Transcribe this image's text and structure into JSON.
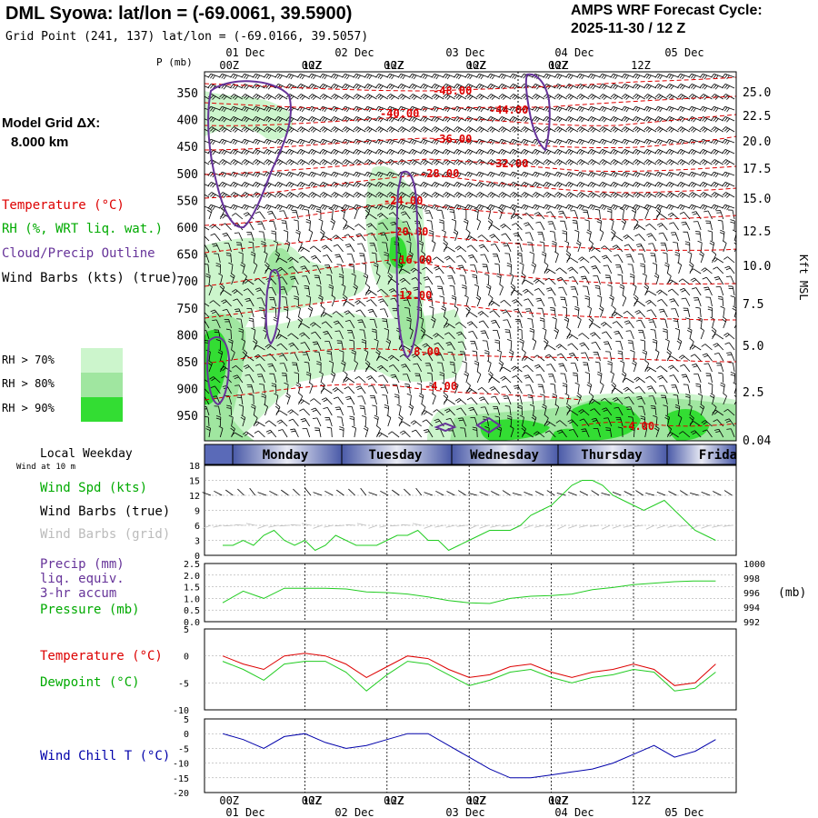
{
  "header": {
    "title": "DML Syowa:  lat/lon = (-69.0061, 39.5900)",
    "grid_point": "Grid Point (241, 137) lat/lon = (-69.0166, 39.5057)",
    "forecast_line1": "AMPS WRF Forecast Cycle:",
    "forecast_line2": "2025-11-30 / 12  Z"
  },
  "left_labels": {
    "model_grid": "Model Grid ΔX:",
    "model_grid_value": "8.000 km",
    "temperature": "Temperature (°C)",
    "rh": "RH (%, WRT liq. wat.)",
    "cloud": "Cloud/Precip Outline",
    "wind_barbs": "Wind Barbs (kts) (true)",
    "rh70": "RH > 70%",
    "rh80": "RH > 80%",
    "rh90": "RH > 90%",
    "local_weekday": "Local Weekday",
    "wind_at": "Wind at 10 m",
    "wind_spd": "Wind Spd (kts)",
    "wind_barbs_true": "Wind Barbs (true)",
    "wind_barbs_grid": "Wind Barbs (grid)",
    "precip": "Precip (mm)",
    "liq": "liq. equiv.",
    "accum": "3-hr accum",
    "pressure": "Pressure (mb)",
    "temp2": "Temperature (°C)",
    "dewpoint": "Dewpoint (°C)",
    "windchill": "Wind Chill T (°C)",
    "p_unit": "P (mb)",
    "kft": "Kft MSL",
    "mb": "(mb)"
  },
  "colors": {
    "temperature": "#dd0000",
    "rh_label": "#00aa00",
    "cloud": "#663399",
    "rh70": "#ccf5cc",
    "rh80": "#a0e6a0",
    "rh90": "#33dd33",
    "line_green": "#22cc22",
    "line_red": "#dd0000",
    "line_blue": "#0000aa"
  },
  "time_axis": {
    "top_dates": [
      "01 Dec",
      "02 Dec",
      "03 Dec",
      "04 Dec",
      "05 Dec"
    ],
    "top_hours": [
      "00Z",
      "12Z",
      "00Z",
      "12Z",
      "00Z",
      "12Z",
      "00Z",
      "12Z",
      "00Z",
      "12Z"
    ],
    "bottom_hours": [
      "00Z",
      "12Z",
      "00Z",
      "12Z",
      "00Z",
      "12Z",
      "00Z",
      "12Z",
      "00Z",
      "12Z"
    ],
    "bottom_dates": [
      "01 Dec",
      "02 Dec",
      "03 Dec",
      "04 Dec",
      "05 Dec"
    ],
    "weekdays": [
      "Monday",
      "Tuesday",
      "Wednesday",
      "Thursday",
      "Frida"
    ]
  },
  "chart_data": [
    {
      "type": "heatmap",
      "name": "cross-section",
      "y_left_ticks": [
        "350",
        "400",
        "450",
        "500",
        "550",
        "600",
        "650",
        "700",
        "750",
        "800",
        "850",
        "900",
        "950"
      ],
      "y_right_ticks": [
        "25.0",
        "22.5",
        "20.0",
        "17.5",
        "15.0",
        "12.5",
        "10.0",
        "7.5",
        "5.0",
        "2.5",
        "0.04"
      ],
      "temperature_labels": [
        "-48.00",
        "-44.00",
        "-40.00",
        "-36.00",
        "-32.00",
        "-28.00",
        "-24.00",
        "-20.00",
        "-16.00",
        "-12.00",
        "-8.00",
        "-4.00",
        "-4.00"
      ]
    },
    {
      "type": "line",
      "name": "wind-speed",
      "y_ticks": [
        "18",
        "15",
        "12",
        "9",
        "6",
        "3",
        "0"
      ],
      "ylim": [
        0,
        18
      ],
      "series": [
        {
          "name": "Wind Spd (kts)",
          "color": "#22cc22",
          "x": [
            0,
            3,
            6,
            9,
            12,
            15,
            18,
            21,
            24,
            27,
            30,
            33,
            36,
            39,
            42,
            45,
            48,
            51,
            54,
            57,
            60,
            63,
            66,
            69,
            72,
            75,
            78,
            81,
            84,
            87,
            90,
            93,
            96,
            99,
            102,
            105,
            108,
            111,
            114,
            117,
            120,
            123,
            126,
            129,
            132,
            135,
            138,
            141,
            144
          ],
          "values": [
            2,
            2,
            3,
            2,
            4,
            5,
            3,
            2,
            3,
            1,
            2,
            4,
            3,
            2,
            2,
            2,
            3,
            4,
            4,
            5,
            3,
            3,
            1,
            2,
            3,
            4,
            5,
            5,
            5,
            6,
            8,
            9,
            10,
            12,
            14,
            15,
            15,
            14,
            12,
            11,
            10,
            9,
            10,
            11,
            9,
            7,
            5,
            4,
            3
          ]
        }
      ]
    },
    {
      "type": "line",
      "name": "precip-pressure",
      "y_left_ticks": [
        "2.5",
        "2.0",
        "1.5",
        "1.0",
        "0.5",
        "0.0"
      ],
      "y_right_ticks": [
        "1000",
        "998",
        "996",
        "994",
        "992"
      ],
      "ylim_pressure": [
        992,
        1000
      ],
      "series": [
        {
          "name": "Pressure (mb)",
          "color": "#22cc22",
          "x": [
            0,
            6,
            12,
            18,
            24,
            30,
            36,
            42,
            48,
            54,
            60,
            66,
            72,
            78,
            84,
            90,
            96,
            102,
            108,
            114,
            120,
            126,
            132,
            138,
            144
          ],
          "values": [
            994.6,
            996.2,
            995.2,
            996.6,
            996.6,
            996.6,
            996.5,
            996.1,
            996.0,
            995.8,
            995.4,
            994.9,
            994.6,
            994.5,
            995.2,
            995.5,
            995.6,
            995.8,
            996.4,
            996.7,
            997.1,
            997.3,
            997.5,
            997.6,
            997.6
          ]
        }
      ]
    },
    {
      "type": "line",
      "name": "temperature-dewpoint",
      "y_ticks": [
        "5",
        "0",
        "-5",
        "-10"
      ],
      "ylim": [
        -10,
        5
      ],
      "series": [
        {
          "name": "Temperature (°C)",
          "color": "#dd0000",
          "x": [
            0,
            6,
            12,
            18,
            24,
            30,
            36,
            42,
            48,
            54,
            60,
            66,
            72,
            78,
            84,
            90,
            96,
            102,
            108,
            114,
            120,
            126,
            132,
            138,
            144
          ],
          "values": [
            0.0,
            -1.5,
            -2.5,
            0.0,
            0.5,
            0.0,
            -1.5,
            -4.0,
            -2.0,
            0.0,
            -0.5,
            -2.5,
            -4.0,
            -3.5,
            -2.0,
            -1.5,
            -3.0,
            -4.0,
            -3.0,
            -2.5,
            -1.5,
            -2.5,
            -5.5,
            -5.0,
            -1.5
          ]
        },
        {
          "name": "Dewpoint (°C)",
          "color": "#22cc22",
          "x": [
            0,
            6,
            12,
            18,
            24,
            30,
            36,
            42,
            48,
            54,
            60,
            66,
            72,
            78,
            84,
            90,
            96,
            102,
            108,
            114,
            120,
            126,
            132,
            138,
            144
          ],
          "values": [
            -1.0,
            -2.5,
            -4.5,
            -1.5,
            -1.0,
            -1.0,
            -3.0,
            -6.5,
            -3.5,
            -1.0,
            -1.5,
            -3.5,
            -5.5,
            -4.5,
            -3.0,
            -2.5,
            -4.0,
            -5.0,
            -4.0,
            -3.5,
            -2.5,
            -3.0,
            -6.5,
            -6.0,
            -3.0
          ]
        }
      ]
    },
    {
      "type": "line",
      "name": "wind-chill",
      "y_ticks": [
        "5",
        "0",
        "-5",
        "-10",
        "-15",
        "-20"
      ],
      "ylim": [
        -20,
        5
      ],
      "series": [
        {
          "name": "Wind Chill T (°C)",
          "color": "#0000aa",
          "x": [
            0,
            6,
            12,
            18,
            24,
            30,
            36,
            42,
            48,
            54,
            60,
            66,
            72,
            78,
            84,
            90,
            96,
            102,
            108,
            114,
            120,
            126,
            132,
            138,
            144
          ],
          "values": [
            0,
            -2,
            -5,
            -1,
            0,
            -3,
            -5,
            -4,
            -2,
            0,
            0,
            -4,
            -8,
            -12,
            -15,
            -15,
            -14,
            -13,
            -12,
            -10,
            -7,
            -4,
            -8,
            -6,
            -2
          ]
        }
      ]
    }
  ]
}
